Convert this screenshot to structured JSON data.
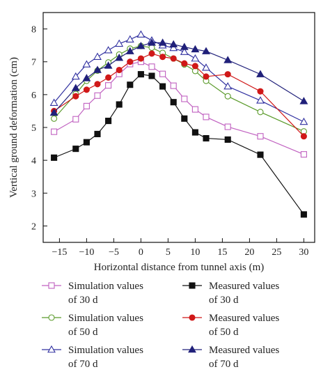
{
  "chart_data": {
    "type": "line",
    "title": "",
    "xlabel": "Horizontal distance from tunnel axis (m)",
    "ylabel": "Vertical ground deformation (cm)",
    "xlim": [
      -18,
      32
    ],
    "ylim": [
      1.5,
      8.5
    ],
    "xticks": [
      -15,
      -10,
      -5,
      0,
      5,
      10,
      15,
      20,
      25,
      30
    ],
    "yticks": [
      2,
      3,
      4,
      5,
      6,
      7,
      8
    ],
    "legend_position": "bottom",
    "series": [
      {
        "name": "Simulation values of 30 d",
        "legend_lines": [
          "Simulation values",
          "of 30 d"
        ],
        "marker": "open-square",
        "color": "#c060c0",
        "x": [
          -16,
          -12,
          -10,
          -8,
          -6,
          -4,
          -2,
          0,
          2,
          4,
          6,
          8,
          10,
          12,
          16,
          22,
          30
        ],
        "y": [
          4.87,
          5.25,
          5.65,
          5.97,
          6.28,
          6.63,
          6.93,
          7.0,
          6.85,
          6.63,
          6.27,
          5.87,
          5.55,
          5.32,
          5.02,
          4.73,
          4.18
        ]
      },
      {
        "name": "Simulation values of 50 d",
        "legend_lines": [
          "Simulation values",
          "of 50 d"
        ],
        "marker": "open-circle",
        "color": "#5a9a2a",
        "x": [
          -16,
          -12,
          -10,
          -8,
          -6,
          -4,
          -2,
          0,
          2,
          4,
          6,
          8,
          10,
          12,
          16,
          22,
          30
        ],
        "y": [
          5.27,
          6.02,
          6.42,
          6.73,
          6.98,
          7.22,
          7.4,
          7.48,
          7.43,
          7.27,
          7.1,
          6.92,
          6.72,
          6.42,
          5.95,
          5.47,
          4.88
        ]
      },
      {
        "name": "Simulation values of 70 d",
        "legend_lines": [
          "Simulation values",
          "of 70 d"
        ],
        "marker": "open-triangle",
        "color": "#3030a0",
        "x": [
          -16,
          -12,
          -10,
          -8,
          -6,
          -4,
          -2,
          0,
          2,
          4,
          6,
          8,
          10,
          12,
          16,
          22,
          30
        ],
        "y": [
          5.75,
          6.55,
          6.92,
          7.15,
          7.35,
          7.55,
          7.68,
          7.83,
          7.65,
          7.5,
          7.42,
          7.3,
          7.1,
          6.82,
          6.25,
          5.82,
          5.17
        ]
      },
      {
        "name": "Measured values of 30 d",
        "legend_lines": [
          "Measured values",
          "of 30 d"
        ],
        "marker": "filled-square",
        "color": "#111111",
        "x": [
          -16,
          -12,
          -10,
          -8,
          -6,
          -4,
          -2,
          0,
          2,
          4,
          6,
          8,
          10,
          12,
          16,
          22,
          30
        ],
        "y": [
          4.08,
          4.35,
          4.55,
          4.8,
          5.2,
          5.7,
          6.3,
          6.62,
          6.57,
          6.25,
          5.77,
          5.27,
          4.85,
          4.67,
          4.63,
          4.17,
          2.35
        ]
      },
      {
        "name": "Measured values of 50 d",
        "legend_lines": [
          "Measured values",
          "of 50 d"
        ],
        "marker": "filled-circle",
        "color": "#d01818",
        "x": [
          -16,
          -12,
          -10,
          -8,
          -6,
          -4,
          -2,
          0,
          2,
          4,
          6,
          8,
          10,
          12,
          16,
          22,
          30
        ],
        "y": [
          5.5,
          5.95,
          6.15,
          6.32,
          6.52,
          6.75,
          7.0,
          7.1,
          7.25,
          7.15,
          7.1,
          6.95,
          6.87,
          6.55,
          6.62,
          6.1,
          4.73
        ]
      },
      {
        "name": "Measured values of 70 d",
        "legend_lines": [
          "Measured values",
          "of 70 d"
        ],
        "marker": "filled-triangle",
        "color": "#20207a",
        "x": [
          -16,
          -12,
          -10,
          -8,
          -6,
          -4,
          -2,
          0,
          2,
          4,
          6,
          8,
          10,
          12,
          16,
          22,
          30
        ],
        "y": [
          5.45,
          6.2,
          6.5,
          6.75,
          6.88,
          7.12,
          7.32,
          7.48,
          7.58,
          7.58,
          7.53,
          7.45,
          7.38,
          7.32,
          7.05,
          6.62,
          5.8
        ]
      }
    ]
  }
}
